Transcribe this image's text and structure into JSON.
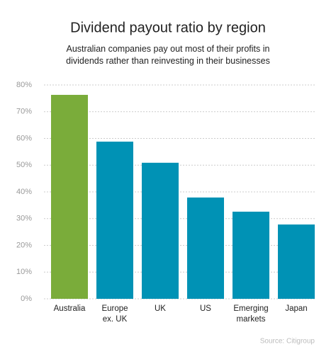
{
  "chart_data": {
    "type": "bar",
    "title": "Dividend payout ratio by region",
    "subtitle": "Australian companies pay out most of their profits in dividends rather than reinvesting in their businesses",
    "categories": [
      "Australia",
      "Europe ex. UK",
      "UK",
      "US",
      "Emerging markets",
      "Japan"
    ],
    "values": [
      76.3,
      58.8,
      50.9,
      37.9,
      32.6,
      27.8
    ],
    "colors": [
      "#7aac3a",
      "#0092b5",
      "#0092b5",
      "#0092b5",
      "#0092b5",
      "#0092b5"
    ],
    "ylim": [
      0,
      80
    ],
    "yticks": [
      {
        "value": 0,
        "label": "0%"
      },
      {
        "value": 10,
        "label": "10%"
      },
      {
        "value": 20,
        "label": "20%"
      },
      {
        "value": 30,
        "label": "30%"
      },
      {
        "value": 40,
        "label": "40%"
      },
      {
        "value": 50,
        "label": "50%"
      },
      {
        "value": 60,
        "label": "60%"
      },
      {
        "value": 70,
        "label": "70%"
      },
      {
        "value": 80,
        "label": "80%"
      }
    ],
    "grid": true,
    "source": "Source: Citigroup"
  }
}
